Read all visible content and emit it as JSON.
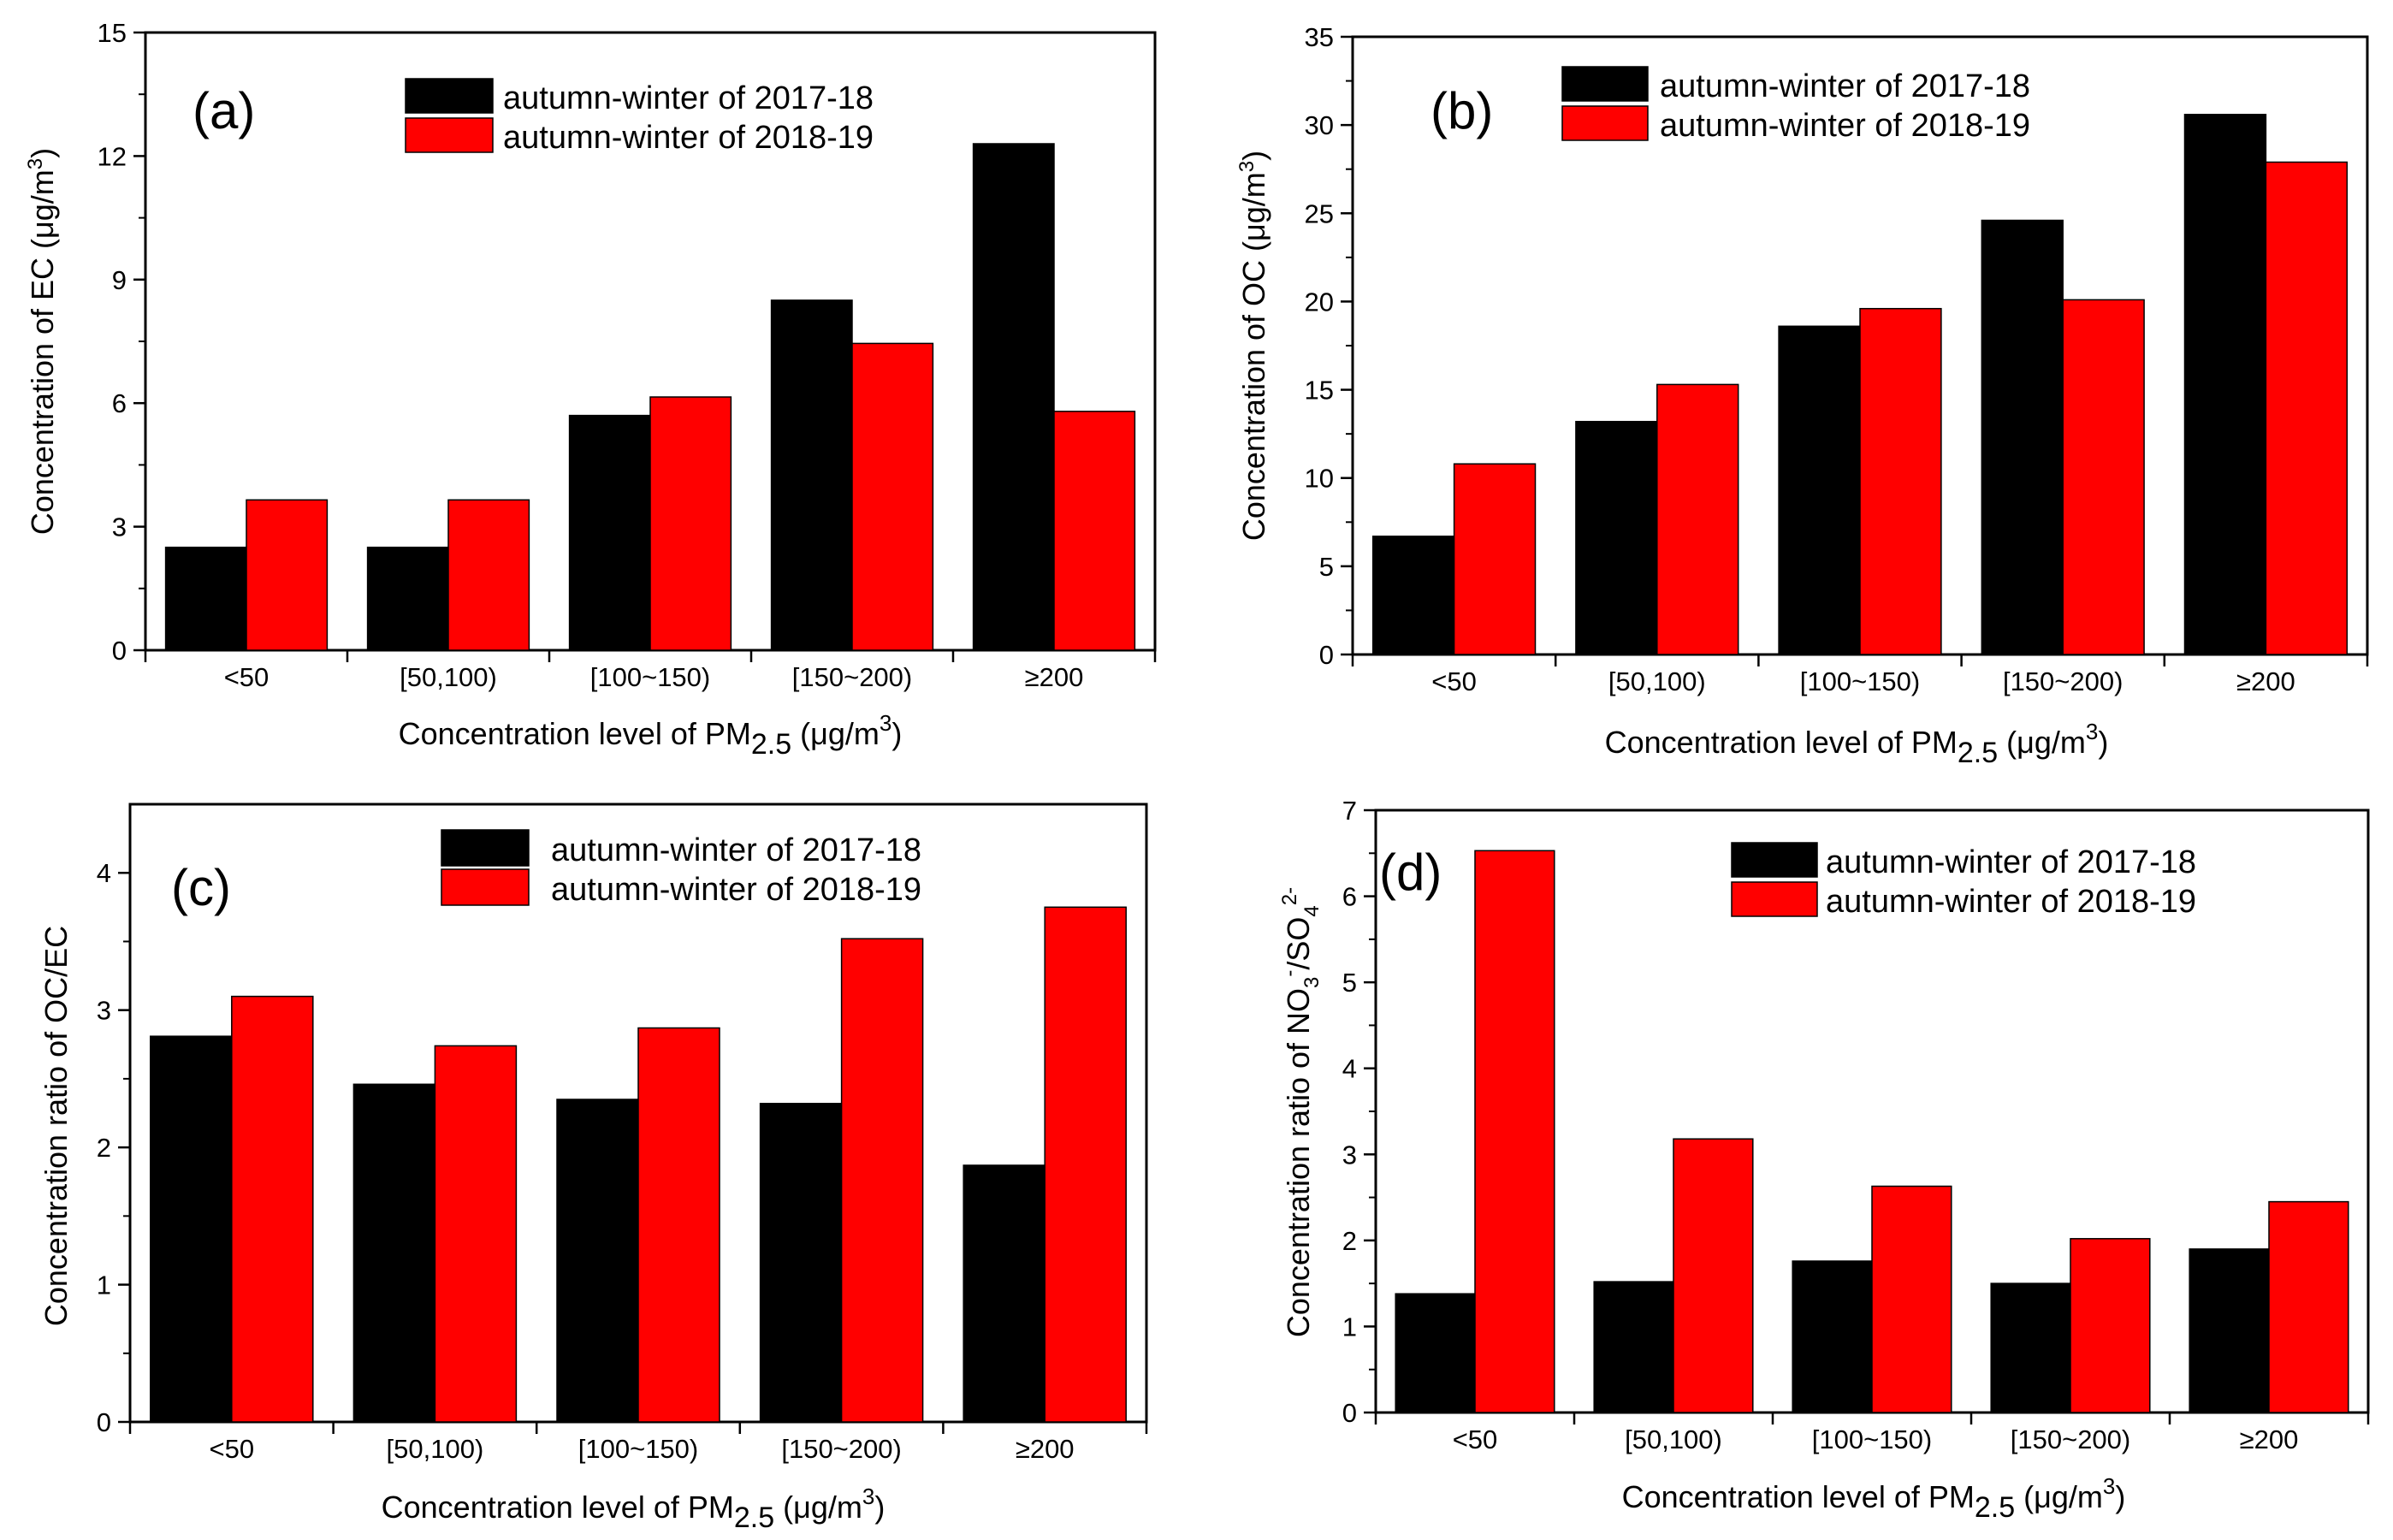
{
  "chart_data": [
    {
      "type": "bar",
      "panel_label": "(a)",
      "categories": [
        "<50",
        "[50,100)",
        "[100~150)",
        "[150~200)",
        "≥200"
      ],
      "series": [
        {
          "name": "autumn-winter of 2017-18",
          "color": "#000000",
          "values": [
            2.5,
            2.5,
            5.7,
            8.5,
            12.3
          ]
        },
        {
          "name": "autumn-winter of 2018-19",
          "color": "#ff0000",
          "values": [
            3.65,
            3.65,
            6.15,
            7.45,
            5.8
          ]
        }
      ],
      "ylabel": {
        "pre": "Concentration of EC (μg/m",
        "sup": "3",
        "post": ")"
      },
      "xlabel": {
        "pre": "Concentration level of PM",
        "sub": "2.5",
        "post": " (μg/m",
        "sup": "3",
        "post2": ")"
      },
      "ylim": [
        0,
        15
      ],
      "yticks": [
        0,
        3,
        6,
        9,
        12,
        15
      ],
      "legend_position": "top-right",
      "grid": false
    },
    {
      "type": "bar",
      "panel_label": "(b)",
      "categories": [
        "<50",
        "[50,100)",
        "[100~150)",
        "[150~200)",
        "≥200"
      ],
      "series": [
        {
          "name": "autumn-winter of 2017-18",
          "color": "#000000",
          "values": [
            6.7,
            13.2,
            18.6,
            24.6,
            30.6
          ]
        },
        {
          "name": "autumn-winter of 2018-19",
          "color": "#ff0000",
          "values": [
            10.8,
            15.3,
            19.6,
            20.1,
            27.9
          ]
        }
      ],
      "ylabel": {
        "pre": "Concentration of OC (μg/m",
        "sup": "3",
        "post": ")"
      },
      "xlabel": {
        "pre": "Concentration level of PM",
        "sub": "2.5",
        "post": " (μg/m",
        "sup": "3",
        "post2": ")"
      },
      "ylim": [
        0,
        35
      ],
      "yticks": [
        0,
        5,
        10,
        15,
        20,
        25,
        30,
        35
      ],
      "legend_position": "top-right",
      "grid": false
    },
    {
      "type": "bar",
      "panel_label": "(c)",
      "categories": [
        "<50",
        "[50,100)",
        "[100~150)",
        "[150~200)",
        "≥200"
      ],
      "series": [
        {
          "name": "autumn-winter of 2017-18",
          "color": "#000000",
          "values": [
            2.81,
            2.46,
            2.35,
            2.32,
            1.87
          ]
        },
        {
          "name": "autumn-winter of 2018-19",
          "color": "#ff0000",
          "values": [
            3.1,
            2.74,
            2.87,
            3.52,
            3.75
          ]
        }
      ],
      "ylabel": {
        "pre": "Concentration ratio of OC/EC",
        "sup": "",
        "post": ""
      },
      "xlabel": {
        "pre": "Concentration level of PM",
        "sub": "2.5",
        "post": " (μg/m",
        "sup": "3",
        "post2": ")"
      },
      "ylim": [
        0,
        4.5
      ],
      "yticks": [
        0,
        1,
        2,
        3,
        4
      ],
      "legend_position": "top-right",
      "grid": false
    },
    {
      "type": "bar",
      "panel_label": "(d)",
      "categories": [
        "<50",
        "[50,100)",
        "[100~150)",
        "[150~200)",
        "≥200"
      ],
      "series": [
        {
          "name": "autumn-winter of 2017-18",
          "color": "#000000",
          "values": [
            1.38,
            1.52,
            1.76,
            1.5,
            1.9
          ]
        },
        {
          "name": "autumn-winter of 2018-19",
          "color": "#ff0000",
          "values": [
            6.53,
            3.18,
            2.63,
            2.02,
            2.45
          ]
        }
      ],
      "ylabel": {
        "pre": "Concentration ratio of NO",
        "sub1": "3",
        "sup1": "-",
        "mid": "/SO",
        "sub2": "4",
        "sup2": "2-"
      },
      "xlabel": {
        "pre": "Concentration level of PM",
        "sub": "2.5",
        "post": " (μg/m",
        "sup": "3",
        "post2": ")"
      },
      "ylim": [
        0,
        7
      ],
      "yticks": [
        0,
        1,
        2,
        3,
        4,
        5,
        6,
        7
      ],
      "legend_position": "top-right",
      "grid": false
    }
  ]
}
